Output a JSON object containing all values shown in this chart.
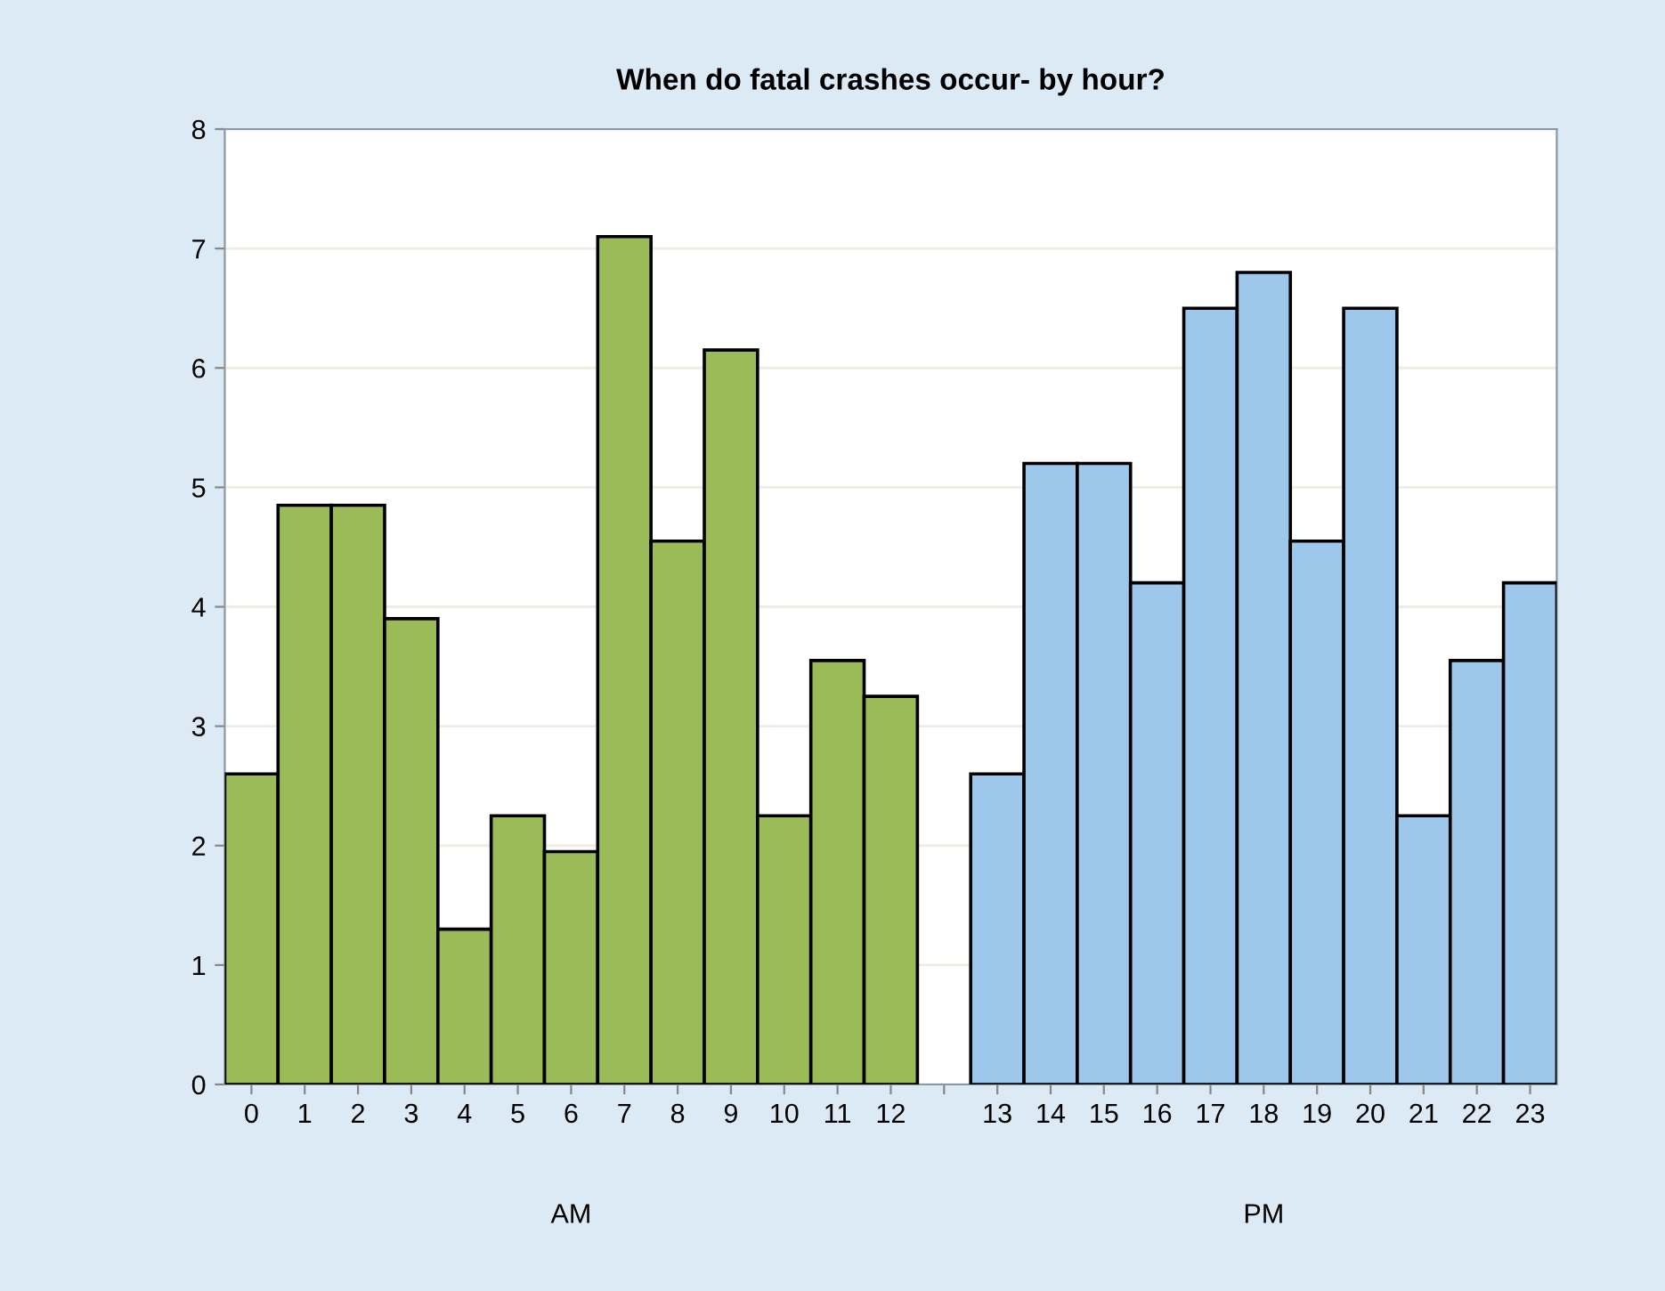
{
  "chart_data": {
    "type": "bar",
    "title": "When do fatal crashes occur- by hour?",
    "categories": [
      "0",
      "1",
      "2",
      "3",
      "4",
      "5",
      "6",
      "7",
      "8",
      "9",
      "10",
      "11",
      "12",
      null,
      "13",
      "14",
      "15",
      "16",
      "17",
      "18",
      "19",
      "20",
      "21",
      "22",
      "23"
    ],
    "series": [
      {
        "color": "#9bbb59",
        "values": [
          2.6,
          4.85,
          4.85,
          3.9,
          1.3,
          2.25,
          1.95,
          7.1,
          4.55,
          6.15,
          2.25,
          3.55,
          3.25,
          null,
          null,
          null,
          null,
          null,
          null,
          null,
          null,
          null,
          null,
          null,
          null
        ]
      },
      {
        "color": "#9dc8ec",
        "values": [
          null,
          null,
          null,
          null,
          null,
          null,
          null,
          null,
          null,
          null,
          null,
          null,
          null,
          null,
          2.6,
          5.2,
          5.2,
          4.2,
          6.5,
          6.8,
          4.55,
          6.5,
          2.25,
          3.55,
          4.2
        ]
      }
    ],
    "annotations": [
      "AM",
      "PM"
    ],
    "ylim": [
      0,
      8
    ],
    "yticks": [
      0,
      1,
      2,
      3,
      4,
      5,
      6,
      7,
      8
    ],
    "grid": "y",
    "legend": false
  }
}
